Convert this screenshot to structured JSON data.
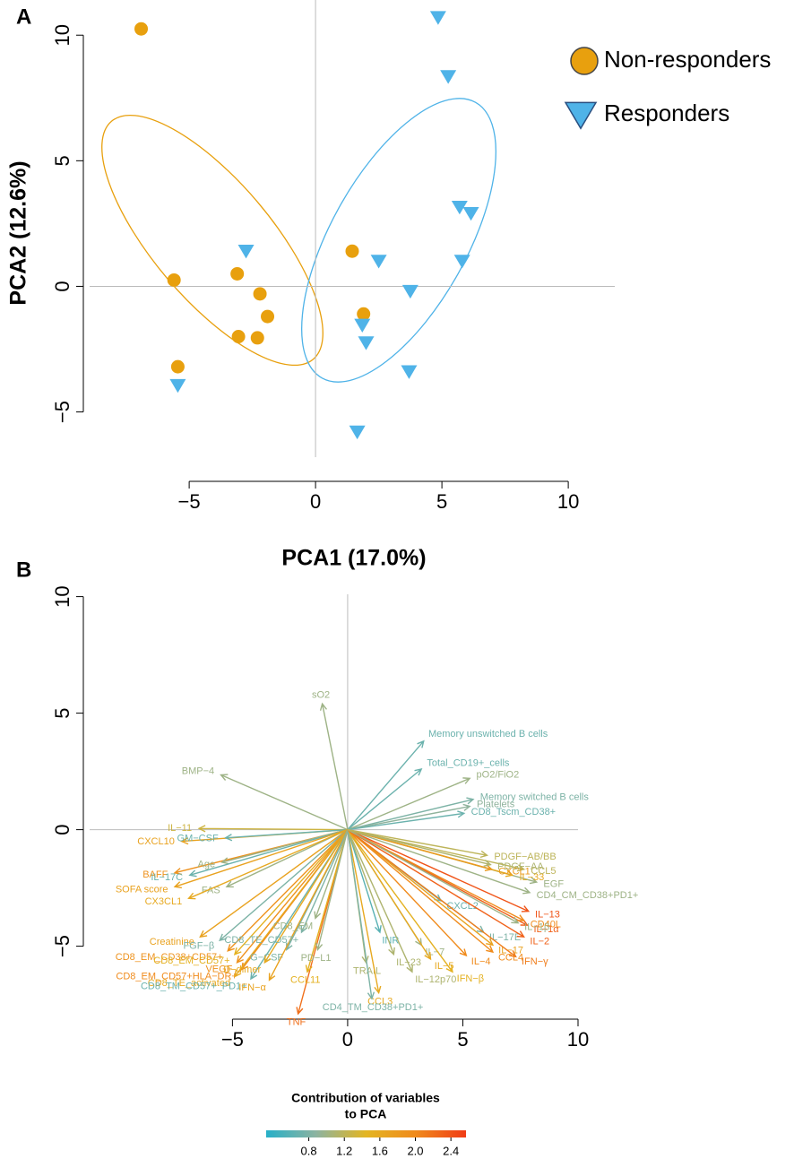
{
  "chart_data": [
    {
      "type": "scatter",
      "panel": "A",
      "xlabel": "PCA1 (17.0%)",
      "ylabel": "PCA2 (12.6%)",
      "xlim": [
        -8.94,
        11.84
      ],
      "ylim": [
        -6.8,
        11.4
      ],
      "xticks": [
        {
          "value": -5,
          "label": "−5"
        },
        0,
        5,
        10
      ],
      "yticks": [
        {
          "value": -5,
          "label": "−5"
        },
        0,
        5,
        10
      ],
      "legend_position": "top-right",
      "series": [
        {
          "name": "Non-responders",
          "color": "#E8A00E",
          "marker": "circle",
          "x": [
            -6.9,
            -5.6,
            -3.1,
            -2.2,
            -1.9,
            -3.05,
            -2.3,
            -5.45,
            1.45,
            1.9
          ],
          "y": [
            10.25,
            0.25,
            0.5,
            -0.3,
            -1.2,
            -2.0,
            -2.05,
            -3.2,
            1.4,
            -1.1
          ]
        },
        {
          "name": "Responders",
          "color": "#4FB3E8",
          "marker": "triangle",
          "x": [
            4.85,
            5.25,
            5.7,
            6.15,
            5.8,
            -2.75,
            2.5,
            3.75,
            1.85,
            2.0,
            3.7,
            -5.45,
            1.65
          ],
          "y": [
            10.7,
            8.35,
            3.15,
            2.9,
            1.0,
            1.4,
            1.0,
            -0.2,
            -1.55,
            -2.25,
            -3.4,
            -3.95,
            -5.8
          ]
        }
      ]
    },
    {
      "type": "biplot",
      "panel": "B",
      "xlim": [
        -11.2,
        10
      ],
      "ylim": [
        -7.9,
        10.1
      ],
      "xticks": [
        {
          "value": -5,
          "label": "−5"
        },
        0,
        5,
        10
      ],
      "yticks": [
        {
          "value": -5,
          "label": "−5"
        },
        0,
        5,
        10
      ],
      "variables": [
        "sO2",
        "Memory unswitched B cells",
        "Total_CD19+_cells",
        "pO2/FiO2",
        "Memory switched B cells",
        "Platelets",
        "CD8_Tscm_CD38+",
        "BMP−4",
        "IL−11",
        "CXCL10",
        "GM−CSF",
        "BAFF",
        "Age",
        "IL−17C",
        "SOFA score",
        "FAS",
        "CX3CL1",
        "Creatinine",
        "FGF−β",
        "CD8_EM_CD38+CD57+",
        "CD8_EM_CD57+",
        "VEGF",
        "CD8_EM_CD57+HLA−DR+",
        "CD8_TE_activated",
        "CD8_TM_CD57+_PD1+",
        "G−CSF",
        "D−dimer",
        "IFN−α",
        "TNF",
        "CCL11",
        "PD−L1",
        "CD8_TE_CD57+",
        "CD8_EM",
        "INR",
        "TRAIL",
        "IL−23",
        "IL−7",
        "CCL3",
        "IL−12p70",
        "CD4_TM_CD38+PD1+",
        "IL−5",
        "IFN−β",
        "IL−4",
        "IL−17E",
        "CXCL2",
        "IL−17",
        "CCL4",
        "IFN−γ",
        "IL−2",
        "IL−1α",
        "IL−13",
        "CD40L",
        "IL−1β",
        "CD4_CM_CD38+PD1+",
        "EGF",
        "IL−33",
        "CCL5",
        "CXCL1",
        "PDGF−AA",
        "PDGF−AB/BB"
      ],
      "x": [
        -1.1,
        3.3,
        3.2,
        5.3,
        5.45,
        5.3,
        5.05,
        -5.5,
        -6.45,
        -7.2,
        -5.3,
        -7.5,
        -5.45,
        -6.85,
        -7.5,
        -5.25,
        -6.9,
        -6.4,
        -5.55,
        -5.2,
        -4.9,
        -4.8,
        -4.6,
        -4.9,
        -4.2,
        -2.65,
        -3.6,
        -3.4,
        -2.15,
        -1.75,
        -1.3,
        -2.0,
        -1.4,
        1.4,
        0.8,
        2.0,
        3.2,
        1.35,
        2.8,
        1.05,
        3.6,
        4.55,
        5.15,
        5.9,
        4.05,
        6.3,
        6.3,
        7.3,
        7.65,
        7.8,
        7.85,
        7.65,
        7.4,
        7.9,
        8.2,
        7.15,
        7.65,
        6.25,
        6.2,
        6.05
      ],
      "y": [
        5.4,
        3.8,
        2.6,
        2.2,
        1.3,
        1.0,
        0.7,
        2.35,
        0.05,
        -0.5,
        -0.35,
        -1.85,
        -1.4,
        -1.95,
        -2.45,
        -2.45,
        -2.95,
        -4.6,
        -4.75,
        -5.2,
        -5.35,
        -5.7,
        -6.0,
        -6.3,
        -6.4,
        -5.15,
        -5.7,
        -6.45,
        -7.9,
        -6.1,
        -5.15,
        -4.4,
        -3.8,
        -4.4,
        -5.7,
        -5.35,
        -4.95,
        -7.0,
        -6.1,
        -7.25,
        -5.55,
        -6.1,
        -5.4,
        -4.4,
        -3.05,
        -4.95,
        -5.25,
        -5.45,
        -4.6,
        -4.1,
        -3.5,
        -3.9,
        -4.0,
        -2.7,
        -2.25,
        -1.95,
        -1.7,
        -1.7,
        -1.5,
        -1.1
      ],
      "values": [
        1.0,
        0.7,
        0.7,
        1.0,
        0.8,
        0.9,
        0.7,
        1.0,
        1.3,
        1.7,
        0.7,
        1.9,
        1.0,
        0.7,
        1.7,
        1.0,
        1.6,
        1.7,
        0.8,
        1.9,
        1.5,
        1.9,
        2.0,
        1.6,
        0.7,
        0.8,
        1.6,
        1.7,
        2.2,
        1.5,
        1.0,
        0.8,
        1.0,
        0.6,
        1.1,
        1.1,
        1.0,
        1.6,
        1.1,
        0.8,
        1.6,
        1.5,
        2.0,
        0.8,
        0.7,
        1.7,
        2.0,
        2.1,
        2.3,
        2.3,
        2.4,
        2.0,
        1.0,
        1.0,
        1.0,
        1.6,
        1.2,
        1.8,
        1.1,
        1.2
      ],
      "colorbar_title": [
        "Contribution of variables",
        "to PCA"
      ],
      "clim": [
        0.32,
        2.57
      ],
      "cticks": [
        0.8,
        1.2,
        1.6,
        {
          "value": 2,
          "label": "2.0"
        },
        2.4
      ],
      "colors": [
        "#27b0c8",
        "#8cb3a0",
        "#e3b522",
        "#f08a1c",
        "#f03c16"
      ]
    }
  ]
}
